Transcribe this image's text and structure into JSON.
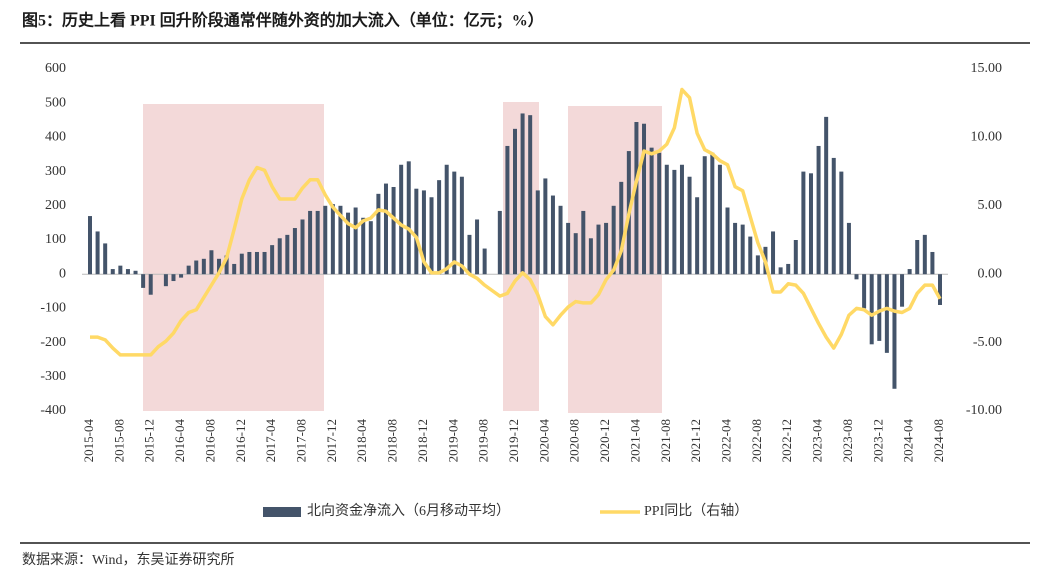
{
  "chart_data": {
    "type": "bar_line",
    "title": "图5：历史上看 PPI 回升阶段通常伴随外资的加大流入（单位：亿元；%）",
    "source": "数据来源：Wind，东吴证券研究所",
    "categories": [
      "2015-04",
      null,
      null,
      null,
      "2015-08",
      null,
      null,
      null,
      "2015-12",
      null,
      null,
      null,
      "2016-04",
      null,
      null,
      null,
      "2016-08",
      null,
      null,
      null,
      "2016-12",
      null,
      null,
      null,
      "2017-04",
      null,
      null,
      null,
      "2017-08",
      null,
      null,
      null,
      "2017-12",
      null,
      null,
      null,
      "2018-04",
      null,
      null,
      null,
      "2018-08",
      null,
      null,
      null,
      "2018-12",
      null,
      null,
      null,
      "2019-04",
      null,
      null,
      null,
      "2019-08",
      null,
      null,
      null,
      "2019-12",
      null,
      null,
      null,
      "2020-04",
      null,
      null,
      null,
      "2020-08",
      null,
      null,
      null,
      "2020-12",
      null,
      null,
      null,
      "2021-04",
      null,
      null,
      null,
      "2021-08",
      null,
      null,
      null,
      "2021-12",
      null,
      null,
      null,
      "2022-04",
      null,
      null,
      null,
      "2022-08",
      null,
      null,
      null,
      "2022-12",
      null,
      null,
      null,
      "2023-04",
      null,
      null,
      null,
      "2023-08",
      null,
      null,
      null,
      "2023-12",
      null,
      null,
      null,
      "2024-04",
      null,
      null,
      null,
      "2024-08"
    ],
    "series": [
      {
        "name": "北向资金净流入（6月移动平均）",
        "type": "bar",
        "color": "#44546a",
        "values": [
          170,
          125,
          90,
          15,
          25,
          15,
          10,
          -40,
          -60,
          0,
          -35,
          -20,
          -10,
          25,
          40,
          45,
          70,
          45,
          55,
          30,
          60,
          65,
          65,
          65,
          85,
          105,
          115,
          135,
          160,
          185,
          185,
          200,
          205,
          200,
          180,
          195,
          165,
          155,
          235,
          265,
          255,
          320,
          330,
          250,
          245,
          225,
          275,
          320,
          300,
          285,
          115,
          160,
          75,
          0,
          185,
          375,
          425,
          470,
          465,
          245,
          280,
          230,
          200,
          150,
          120,
          185,
          105,
          145,
          150,
          200,
          270,
          360,
          445,
          440,
          370,
          355,
          320,
          305,
          320,
          285,
          225,
          345,
          355,
          320,
          195,
          150,
          145,
          110,
          55,
          80,
          125,
          20,
          30,
          100,
          300,
          295,
          375,
          460,
          340,
          300,
          150,
          -15,
          -100,
          -205,
          -195,
          -230,
          -335,
          -95,
          15,
          100,
          115,
          65,
          -90
        ]
      },
      {
        "name": "PPI同比（右轴）",
        "type": "line",
        "axis": "y2",
        "color": "#ffd966",
        "values": [
          -4.6,
          -4.6,
          -4.8,
          -5.4,
          -5.9,
          -5.9,
          -5.9,
          -5.9,
          -5.9,
          -5.3,
          -4.9,
          -4.3,
          -3.4,
          -2.8,
          -2.6,
          -1.7,
          -0.8,
          0.1,
          1.2,
          3.3,
          5.5,
          6.9,
          7.8,
          7.6,
          6.4,
          5.5,
          5.5,
          5.5,
          6.3,
          6.9,
          6.9,
          5.8,
          4.9,
          4.3,
          3.7,
          3.4,
          3.9,
          4.1,
          4.7,
          4.6,
          4.1,
          3.6,
          3.3,
          2.7,
          0.9,
          0.1,
          0.1,
          0.4,
          0.9,
          0.6,
          0,
          -0.3,
          -0.8,
          -1.2,
          -1.6,
          -1.4,
          -0.5,
          0.1,
          -0.4,
          -1.5,
          -3.1,
          -3.7,
          -3.0,
          -2.4,
          -2.0,
          -2.1,
          -2.1,
          -1.5,
          -0.4,
          0.3,
          1.7,
          4.4,
          6.8,
          9.0,
          8.8,
          9.0,
          9.5,
          10.7,
          13.5,
          12.9,
          10.3,
          9.1,
          8.8,
          8.3,
          8.0,
          6.4,
          6.1,
          4.2,
          2.3,
          0.9,
          -1.3,
          -1.3,
          -0.7,
          -0.8,
          -1.4,
          -2.5,
          -3.6,
          -4.6,
          -5.4,
          -4.4,
          -3.0,
          -2.5,
          -2.6,
          -3.0,
          -2.7,
          -2.5,
          -2.7,
          -2.8,
          -2.5,
          -1.4,
          -0.8,
          -0.8,
          -1.8
        ]
      }
    ],
    "ylim": [
      -400,
      600
    ],
    "yticks": [
      -400,
      -300,
      -200,
      -100,
      0,
      100,
      200,
      300,
      400,
      500,
      600
    ],
    "y2lim": [
      -10,
      15
    ],
    "y2ticks": [
      {
        "value": -10,
        "label": "-10.00"
      },
      {
        "value": -5,
        "label": "-5.00"
      },
      {
        "value": 0,
        "label": "0.00"
      },
      {
        "value": 5,
        "label": "5.00"
      },
      {
        "value": 10,
        "label": "10.00"
      },
      {
        "value": 15,
        "label": "15.00"
      }
    ]
  }
}
